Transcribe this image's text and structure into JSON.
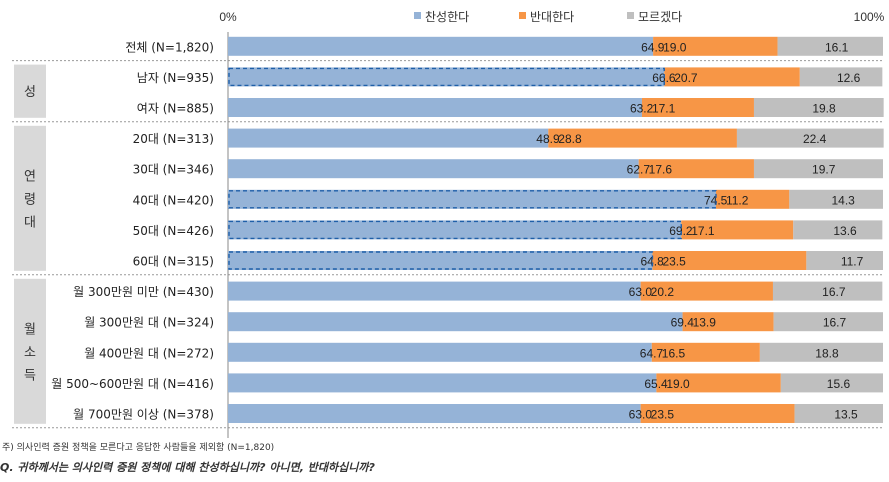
{
  "chart_data": {
    "type": "bar",
    "stacked": "horizontal-100",
    "axis": {
      "left_label": "0%",
      "right_label": "100%"
    },
    "legend": [
      {
        "name": "찬성한다",
        "color": "#95b3d7"
      },
      {
        "name": "반대한다",
        "color": "#f79646"
      },
      {
        "name": "모르겠다",
        "color": "#bfbfbf"
      }
    ],
    "groups": [
      {
        "label": "성",
        "rows": [
          1,
          2
        ]
      },
      {
        "label": "연령대",
        "rows": [
          3,
          4,
          5,
          6,
          7
        ]
      },
      {
        "label": "월소득",
        "rows": [
          8,
          9,
          10,
          11,
          12
        ]
      }
    ],
    "rows": [
      {
        "category": "전체 (N=1,820)",
        "values": [
          64.9,
          19.0,
          16.1
        ],
        "labels": [
          "64.9",
          "19.0",
          "16.1"
        ],
        "highlight": false
      },
      {
        "category": "남자 (N=935)",
        "values": [
          66.6,
          20.7,
          12.6
        ],
        "labels": [
          "66.6",
          "20.7",
          "12.6"
        ],
        "highlight": true
      },
      {
        "category": "여자 (N=885)",
        "values": [
          63.2,
          17.1,
          19.8
        ],
        "labels": [
          "63.2",
          "17.1",
          "19.8"
        ],
        "highlight": false
      },
      {
        "category": "20대 (N=313)",
        "values": [
          48.9,
          28.8,
          22.4
        ],
        "labels": [
          "48.9",
          "28.8",
          "22.4"
        ],
        "highlight": false
      },
      {
        "category": "30대 (N=346)",
        "values": [
          62.7,
          17.6,
          19.7
        ],
        "labels": [
          "62.7",
          "17.6",
          "19.7"
        ],
        "highlight": false
      },
      {
        "category": "40대 (N=420)",
        "values": [
          74.5,
          11.2,
          14.3
        ],
        "labels": [
          "74.5",
          "11.2",
          "14.3"
        ],
        "highlight": true
      },
      {
        "category": "50대 (N=426)",
        "values": [
          69.2,
          17.1,
          13.6
        ],
        "labels": [
          "69.2",
          "17.1",
          "13.6"
        ],
        "highlight": true
      },
      {
        "category": "60대 (N=315)",
        "values": [
          64.8,
          23.5,
          11.7
        ],
        "labels": [
          "64.8",
          "23.5",
          "11.7"
        ],
        "highlight": true
      },
      {
        "category": "월 300만원 미만 (N=430)",
        "values": [
          63.0,
          20.2,
          16.7
        ],
        "labels": [
          "63.0",
          "20.2",
          "16.7"
        ],
        "highlight": false
      },
      {
        "category": "월 300만원 대 (N=324)",
        "values": [
          69.4,
          13.9,
          16.7
        ],
        "labels": [
          "69.4",
          "13.9",
          "16.7"
        ],
        "highlight": false
      },
      {
        "category": "월 400만원 대 (N=272)",
        "values": [
          64.7,
          16.5,
          18.8
        ],
        "labels": [
          "64.7",
          "16.5",
          "18.8"
        ],
        "highlight": false
      },
      {
        "category": "월 500~600만원 대 (N=416)",
        "values": [
          65.4,
          19.0,
          15.6
        ],
        "labels": [
          "65.4",
          "19.0",
          "15.6"
        ],
        "highlight": false
      },
      {
        "category": "월 700만원 이상 (N=378)",
        "values": [
          63.0,
          23.5,
          13.5
        ],
        "labels": [
          "63.0",
          "23.5",
          "13.5"
        ],
        "highlight": false
      }
    ]
  },
  "footnote": "주) 의사인력 증원 정책을 모른다고 응답한 사람들을 제외함 (N=1,820)",
  "question": "Q. 귀하께서는 의사인력 증원 정책에 대해 찬성하십니까? 아니면, 반대하십니까?"
}
